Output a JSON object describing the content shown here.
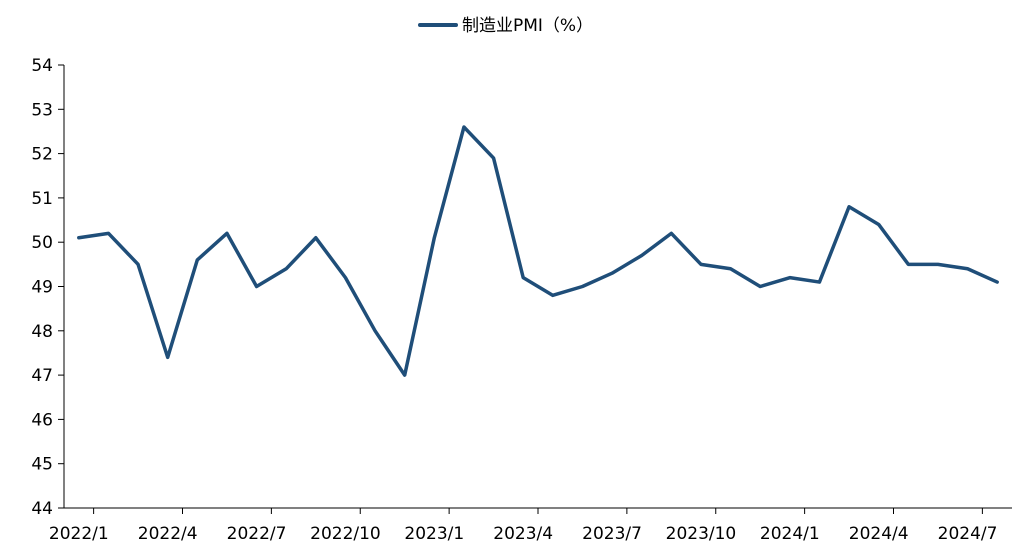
{
  "chart_data": {
    "type": "line",
    "title": "",
    "xlabel": "",
    "ylabel": "",
    "ylim": [
      44,
      54
    ],
    "yticks": [
      44,
      45,
      46,
      47,
      48,
      49,
      50,
      51,
      52,
      53,
      54
    ],
    "x": [
      "2022/1",
      "2022/2",
      "2022/3",
      "2022/4",
      "2022/5",
      "2022/6",
      "2022/7",
      "2022/8",
      "2022/9",
      "2022/10",
      "2022/11",
      "2022/12",
      "2023/1",
      "2023/2",
      "2023/3",
      "2023/4",
      "2023/5",
      "2023/6",
      "2023/7",
      "2023/8",
      "2023/9",
      "2023/10",
      "2023/11",
      "2023/12",
      "2024/1",
      "2024/2",
      "2024/3",
      "2024/4",
      "2024/5",
      "2024/6",
      "2024/7",
      "2024/8"
    ],
    "xtick_labels": [
      "2022/1",
      "2022/4",
      "2022/7",
      "2022/10",
      "2023/1",
      "2023/4",
      "2023/7",
      "2023/10",
      "2024/1",
      "2024/4",
      "2024/7"
    ],
    "series": [
      {
        "name": "制造业PMI（%）",
        "color": "#1f4e79",
        "values": [
          50.1,
          50.2,
          49.5,
          47.4,
          49.6,
          50.2,
          49.0,
          49.4,
          50.1,
          49.2,
          48.0,
          47.0,
          50.1,
          52.6,
          51.9,
          49.2,
          48.8,
          49.0,
          49.3,
          49.7,
          50.2,
          49.5,
          49.4,
          49.0,
          49.2,
          49.1,
          50.8,
          50.4,
          49.5,
          49.5,
          49.4,
          49.1
        ]
      }
    ],
    "grid": false,
    "legend_position": "top-center"
  }
}
